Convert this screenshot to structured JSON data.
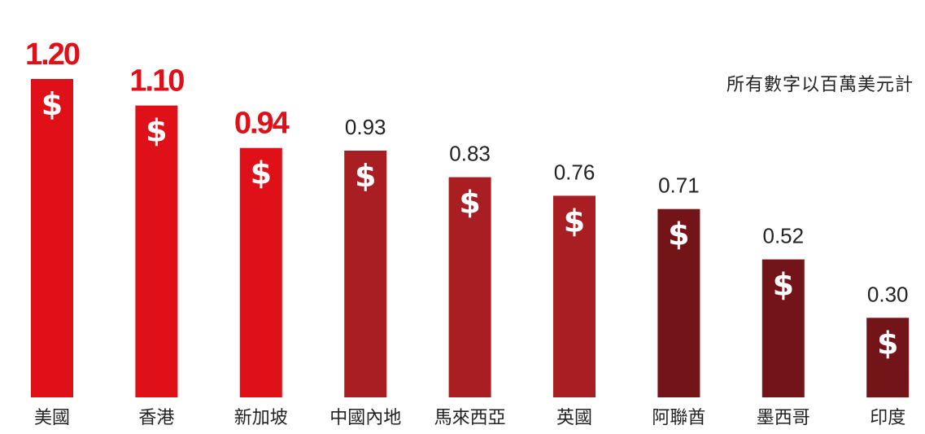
{
  "unit_note": "所有數字以百萬美元計",
  "chart_data": {
    "type": "bar",
    "categories": [
      "美國",
      "香港",
      "新加坡",
      "中國內地",
      "馬來西亞",
      "英國",
      "阿聯酋",
      "墨西哥",
      "印度"
    ],
    "values": [
      1.2,
      1.1,
      0.94,
      0.93,
      0.83,
      0.76,
      0.71,
      0.52,
      0.3
    ],
    "value_labels": [
      "1.20",
      "1.10",
      "0.94",
      "0.93",
      "0.83",
      "0.76",
      "0.71",
      "0.52",
      "0.30"
    ],
    "bar_colors": [
      "#e01019",
      "#e01019",
      "#e01019",
      "#a81e22",
      "#a81e22",
      "#a81e22",
      "#731518",
      "#731518",
      "#731518"
    ],
    "highlight_count": 3,
    "highlight_label_color": "#e01019",
    "label_color": "#222222",
    "bar_icon": "dollar-sign",
    "title": "",
    "xlabel": "",
    "ylabel": "",
    "ylim": [
      0,
      1.2
    ]
  }
}
